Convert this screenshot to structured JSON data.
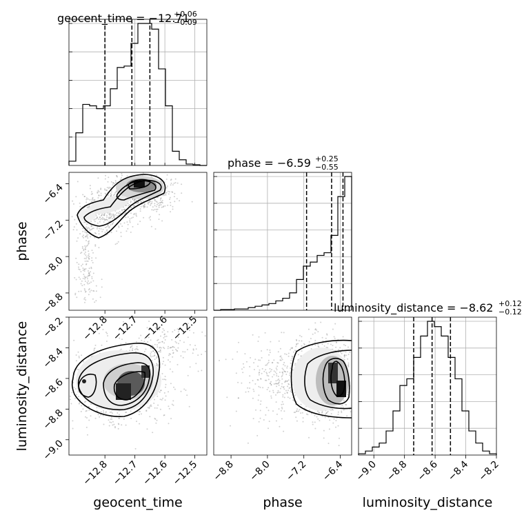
{
  "chart_data": {
    "type": "corner",
    "parameters": [
      "geocent_time",
      "phase",
      "luminosity_distance"
    ],
    "ranges": {
      "geocent_time": [
        -12.92,
        -12.46
      ],
      "phase": [
        -9.18,
        -6.15
      ],
      "luminosity_distance": [
        -9.1,
        -8.2
      ]
    },
    "ticks": {
      "geocent_time": [
        -12.8,
        -12.7,
        -12.6,
        -12.5
      ],
      "phase": [
        -8.8,
        -8.0,
        -7.2,
        -6.4
      ],
      "luminosity_distance": [
        -9.0,
        -8.8,
        -8.6,
        -8.4,
        -8.2
      ]
    },
    "tick_labels": {
      "geocent_time": [
        "−12.8",
        "−12.7",
        "−12.6",
        "−12.5"
      ],
      "phase": [
        "−8.8",
        "−8.0",
        "−7.2",
        "−6.4"
      ],
      "luminosity_distance": [
        "−9.0",
        "−8.8",
        "−8.6",
        "−8.4",
        "−8.2"
      ]
    },
    "summaries": [
      {
        "name": "geocent_time",
        "median": "−12.71",
        "plus": "+0.06",
        "minus": "−0.09",
        "quantiles": [
          -12.8,
          -12.71,
          -12.65
        ]
      },
      {
        "name": "phase",
        "median": "−6.59",
        "plus": "+0.25",
        "minus": "−0.55",
        "quantiles": [
          -7.14,
          -6.59,
          -6.34
        ]
      },
      {
        "name": "luminosity_distance",
        "median": "−8.62",
        "plus": "+0.12",
        "minus": "−0.12",
        "quantiles": [
          -8.74,
          -8.62,
          -8.5
        ]
      }
    ],
    "histograms": {
      "geocent_time": {
        "edges": [
          -12.92,
          -12.897,
          -12.874,
          -12.851,
          -12.828,
          -12.805,
          -12.782,
          -12.759,
          -12.736,
          -12.713,
          -12.69,
          -12.667,
          -12.644,
          -12.621,
          -12.598,
          -12.575,
          -12.552,
          -12.529,
          -12.506,
          -12.483,
          -12.46
        ],
        "counts": [
          0.03,
          0.23,
          0.43,
          0.42,
          0.4,
          0.42,
          0.54,
          0.69,
          0.7,
          0.86,
          1.0,
          1.0,
          0.96,
          0.68,
          0.42,
          0.1,
          0.04,
          0.01,
          0.005,
          0
        ]
      },
      "phase": {
        "edges": [
          -9.18,
          -9.0285,
          -8.877,
          -8.7255,
          -8.574,
          -8.4225,
          -8.271,
          -8.1195,
          -7.968,
          -7.8165,
          -7.665,
          -7.5135,
          -7.362,
          -7.2105,
          -7.059,
          -6.9075,
          -6.756,
          -6.6045,
          -6.453,
          -6.3015,
          -6.15
        ],
        "counts": [
          0,
          0.005,
          0.005,
          0.01,
          0.01,
          0.02,
          0.03,
          0.04,
          0.05,
          0.07,
          0.09,
          0.13,
          0.23,
          0.33,
          0.36,
          0.41,
          0.43,
          0.56,
          0.85,
          1.0
        ]
      },
      "luminosity_distance": {
        "edges": [
          -9.1,
          -9.055,
          -9.01,
          -8.965,
          -8.92,
          -8.875,
          -8.83,
          -8.785,
          -8.74,
          -8.695,
          -8.65,
          -8.605,
          -8.56,
          -8.515,
          -8.47,
          -8.425,
          -8.38,
          -8.335,
          -8.29,
          -8.245,
          -8.2
        ],
        "counts": [
          0.01,
          0.03,
          0.06,
          0.09,
          0.18,
          0.33,
          0.52,
          0.57,
          0.73,
          0.89,
          1.0,
          0.96,
          0.89,
          0.73,
          0.57,
          0.33,
          0.18,
          0.09,
          0.03,
          0.01
        ]
      }
    },
    "grid": true,
    "colors": {
      "contour": "#000000",
      "samples": "#777777",
      "grid": "#b0b0b0"
    }
  }
}
